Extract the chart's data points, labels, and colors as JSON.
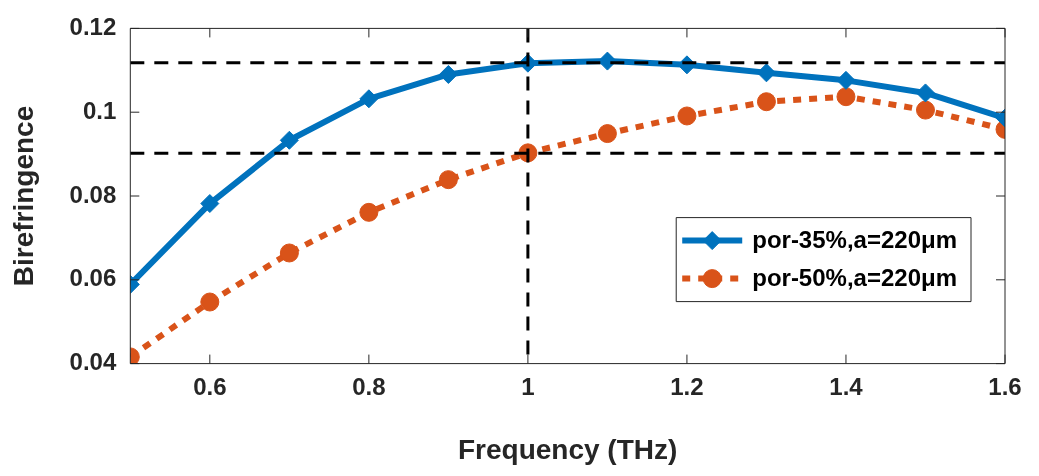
{
  "chart_data": {
    "type": "line",
    "xlabel": "Frequency (THz)",
    "ylabel": "Birefringence",
    "x": [
      0.5,
      0.6,
      0.7,
      0.8,
      0.9,
      1.0,
      1.1,
      1.2,
      1.3,
      1.4,
      1.5,
      1.6
    ],
    "series": [
      {
        "name": "por-35%,a=220μm",
        "color": "#0072bd",
        "marker": "diamond",
        "line_style": "solid",
        "values": [
          0.0589,
          0.0782,
          0.0933,
          0.1032,
          0.109,
          0.1117,
          0.1122,
          0.1113,
          0.1094,
          0.1076,
          0.1046,
          0.0986
        ]
      },
      {
        "name": "por-50%,a=220μm",
        "color": "#d95319",
        "marker": "circle",
        "line_style": "dotted",
        "values": [
          0.0416,
          0.0547,
          0.0664,
          0.0761,
          0.0839,
          0.0903,
          0.0949,
          0.0991,
          0.1025,
          0.1037,
          0.1005,
          0.0959
        ]
      }
    ],
    "xlim": [
      0.5,
      1.6
    ],
    "xticks": [
      0.6,
      0.8,
      1,
      1.2,
      1.4,
      1.6
    ],
    "ylim": [
      0.04,
      0.12
    ],
    "yticks": [
      0.04,
      0.06,
      0.08,
      0.1,
      0.12
    ],
    "ref_lines": [
      {
        "axis": "y",
        "value": 0.1118,
        "color": "#000000",
        "line_style": "dashed"
      },
      {
        "axis": "y",
        "value": 0.0902,
        "color": "#000000",
        "line_style": "dashed"
      },
      {
        "axis": "x",
        "value": 1.0,
        "color": "#000000",
        "line_style": "dashed"
      }
    ],
    "legend": "bottom right"
  }
}
